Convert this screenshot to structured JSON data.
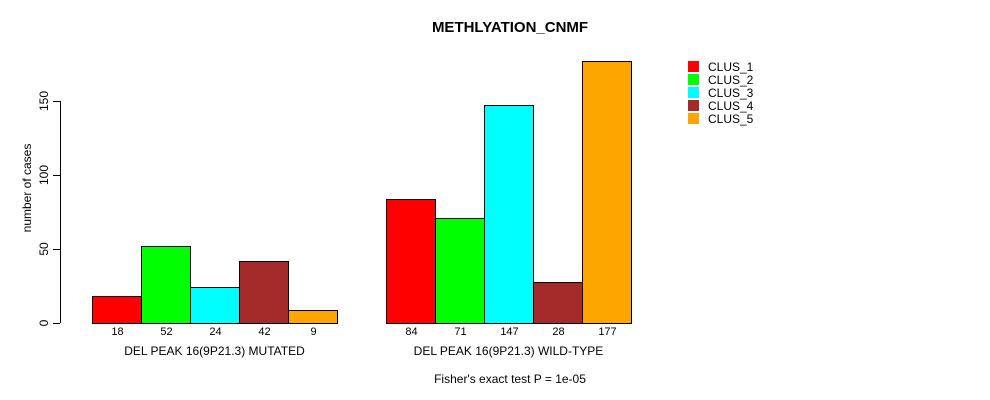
{
  "chart_data": {
    "type": "bar",
    "title": "METHLYATION_CNMF",
    "subtitle": "Fisher's exact test P = 1e-05",
    "ylabel": "number of cases",
    "xlabel": "",
    "ylim": [
      0,
      177
    ],
    "yticks": [
      0,
      50,
      100,
      150
    ],
    "grid": false,
    "legend_position": "right",
    "show_value_labels": true,
    "bar_border_color": "#000000",
    "background_color": "#ffffff",
    "categories": [
      "DEL PEAK 16(9P21.3) MUTATED",
      "DEL PEAK 16(9P21.3) WILD-TYPE"
    ],
    "series": [
      {
        "name": "CLUS_1",
        "color": "#FF0000",
        "values": [
          18,
          84
        ]
      },
      {
        "name": "CLUS_2",
        "color": "#00FF00",
        "values": [
          52,
          71
        ]
      },
      {
        "name": "CLUS_3",
        "color": "#00FFFF",
        "values": [
          24,
          147
        ]
      },
      {
        "name": "CLUS_4",
        "color": "#A52A2A",
        "values": [
          42,
          28
        ]
      },
      {
        "name": "CLUS_5",
        "color": "#FFA500",
        "values": [
          9,
          177
        ]
      }
    ]
  }
}
